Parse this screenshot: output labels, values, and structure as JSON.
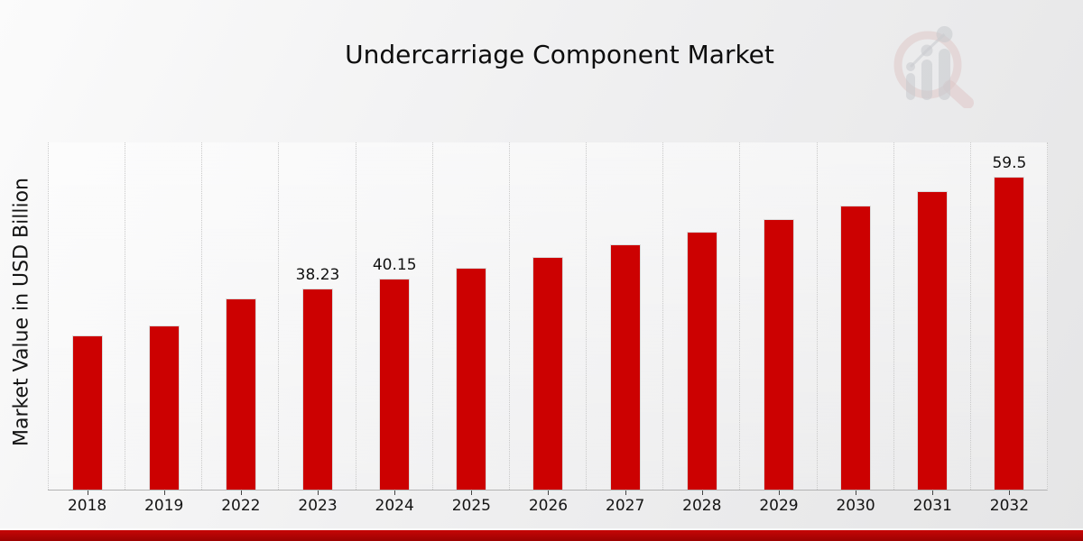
{
  "chart_data": {
    "type": "bar",
    "title": "Undercarriage Component Market",
    "ylabel": "Market Value in USD Billion",
    "xlabel": "",
    "categories": [
      "2018",
      "2019",
      "2022",
      "2023",
      "2024",
      "2025",
      "2026",
      "2027",
      "2028",
      "2029",
      "2030",
      "2031",
      "2032"
    ],
    "values": [
      29.3,
      31.2,
      36.4,
      38.23,
      40.15,
      42.2,
      44.3,
      46.6,
      49.0,
      51.4,
      54.0,
      56.8,
      59.5
    ],
    "value_labels": {
      "2023": "38.23",
      "2024": "40.15",
      "2032": "59.5"
    },
    "bar_color": "#cc0101",
    "grid": "vertical-dotted",
    "legend": "none",
    "y_tick_labels": "none",
    "ylim": [
      0,
      66
    ]
  },
  "watermark": {
    "name": "magnifier-bar-chart-logo",
    "ring_color": "#c98f8f",
    "bars_color": "#9ba0a8"
  },
  "footer": {
    "accent_bar_color": "#b80404"
  }
}
